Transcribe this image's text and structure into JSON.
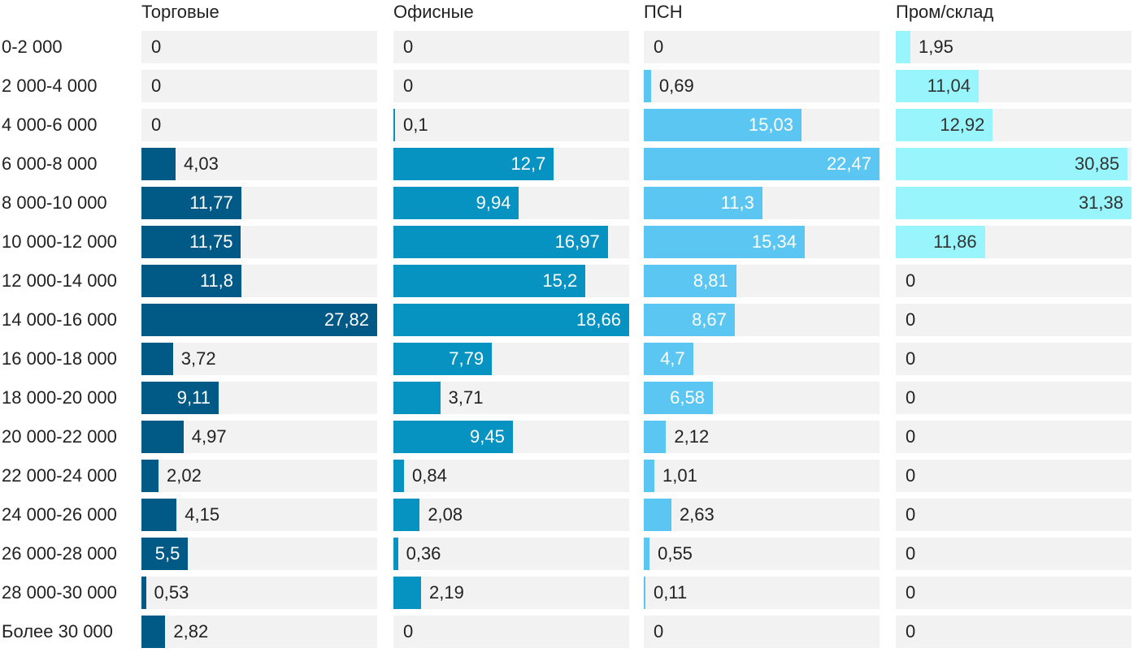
{
  "chart_data": {
    "type": "bar",
    "orientation": "horizontal",
    "layout": "small-multiples",
    "categories": [
      "0-2 000",
      "2 000-4 000",
      "4 000-6 000",
      "6 000-8 000",
      "8 000-10 000",
      "10 000-12 000",
      "12 000-14 000",
      "14 000-16 000",
      "16 000-18 000",
      "18 000-20 000",
      "20 000-22 000",
      "22 000-24 000",
      "24 000-26 000",
      "26 000-28 000",
      "28 000-30 000",
      "Более 30 000"
    ],
    "series": [
      {
        "name": "Торговые",
        "color": "#005a85",
        "xlim": [
          0,
          27.82
        ],
        "values": [
          0,
          0,
          0,
          4.03,
          11.77,
          11.75,
          11.8,
          27.82,
          3.72,
          9.11,
          4.97,
          2.02,
          4.15,
          5.5,
          0.53,
          2.82
        ],
        "labels": [
          "0",
          "0",
          "0",
          "4,03",
          "11,77",
          "11,75",
          "11,8",
          "27,82",
          "3,72",
          "9,11",
          "4,97",
          "2,02",
          "4,15",
          "5,5",
          "0,53",
          "2,82"
        ]
      },
      {
        "name": "Офисные",
        "color": "#0693c2",
        "xlim": [
          0,
          18.66
        ],
        "values": [
          0,
          0,
          0.1,
          12.7,
          9.94,
          16.97,
          15.2,
          18.66,
          7.79,
          3.71,
          9.45,
          0.84,
          2.08,
          0.36,
          2.19,
          0
        ],
        "labels": [
          "0",
          "0",
          "0,1",
          "12,7",
          "9,94",
          "16,97",
          "15,2",
          "18,66",
          "7,79",
          "3,71",
          "9,45",
          "0,84",
          "2,08",
          "0,36",
          "2,19",
          "0"
        ]
      },
      {
        "name": "ПСН",
        "color": "#5bc6f2",
        "xlim": [
          0,
          22.47
        ],
        "values": [
          0,
          0.69,
          15.03,
          22.47,
          11.3,
          15.34,
          8.81,
          8.67,
          4.7,
          6.58,
          2.12,
          1.01,
          2.63,
          0.55,
          0.11,
          0
        ],
        "labels": [
          "0",
          "0,69",
          "15,03",
          "22,47",
          "11,3",
          "15,34",
          "8,81",
          "8,67",
          "4,7",
          "6,58",
          "2,12",
          "1,01",
          "2,63",
          "0,55",
          "0,11",
          "0"
        ]
      },
      {
        "name": "Пром/склад",
        "color": "#98f5fb",
        "xlim": [
          0,
          31.38
        ],
        "values": [
          1.95,
          11.04,
          12.92,
          30.85,
          31.38,
          11.86,
          0,
          0,
          0,
          0,
          0,
          0,
          0,
          0,
          0,
          0
        ],
        "labels": [
          "1,95",
          "11,04",
          "12,92",
          "30,85",
          "31,38",
          "11,86",
          "0",
          "0",
          "0",
          "0",
          "0",
          "0",
          "0",
          "0",
          "0",
          "0"
        ]
      }
    ],
    "title": "",
    "xlabel": "",
    "ylabel": "",
    "grid": false,
    "legend": "column-headers-top"
  }
}
